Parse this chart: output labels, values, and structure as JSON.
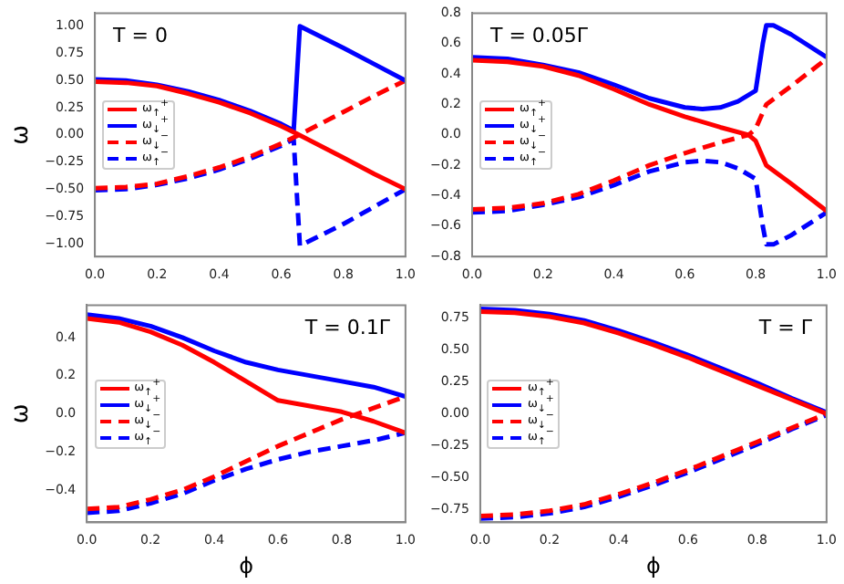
{
  "chart_data": [
    {
      "type": "line",
      "title": "T = 0",
      "ylabel": "ω",
      "legend": "center left",
      "grid": false,
      "marker": "none",
      "xlim": [
        0,
        1
      ],
      "ylim": [
        -1.12,
        1.12
      ],
      "xticks": [
        {
          "value": 0,
          "label": "0.0"
        },
        {
          "value": 0.2,
          "label": "0.2"
        },
        {
          "value": 0.4,
          "label": "0.4"
        },
        {
          "value": 0.6,
          "label": "0.6"
        },
        {
          "value": 0.8,
          "label": "0.8"
        },
        {
          "value": 1,
          "label": "1.0"
        }
      ],
      "yticks": [
        {
          "value": -1,
          "label": "−1.00"
        },
        {
          "value": -0.75,
          "label": "−0.75"
        },
        {
          "value": -0.5,
          "label": "−0.50"
        },
        {
          "value": -0.25,
          "label": "−0.25"
        },
        {
          "value": 0,
          "label": "0.00"
        },
        {
          "value": 0.25,
          "label": "0.25"
        },
        {
          "value": 0.5,
          "label": "0.50"
        },
        {
          "value": 0.75,
          "label": "0.75"
        },
        {
          "value": 1,
          "label": "1.00"
        }
      ],
      "series": [
        {
          "name": "ω$_{↑}$$^{+}$",
          "color": "#ff0000",
          "line_style": "solid",
          "x": [
            0,
            0.1,
            0.2,
            0.3,
            0.4,
            0.5,
            0.6,
            0.65,
            0.8,
            0.9,
            1
          ],
          "values": [
            0.49,
            0.48,
            0.45,
            0.38,
            0.3,
            0.2,
            0.08,
            0.01,
            -0.21,
            -0.36,
            -0.5
          ]
        },
        {
          "name": "ω$_{↓}$$^{+}$",
          "color": "#0000ff",
          "line_style": "solid",
          "x": [
            0,
            0.1,
            0.2,
            0.3,
            0.4,
            0.5,
            0.6,
            0.64,
            0.66,
            0.8,
            0.9,
            1
          ],
          "values": [
            0.51,
            0.5,
            0.46,
            0.4,
            0.32,
            0.22,
            0.1,
            0.04,
            1.0,
            0.8,
            0.65,
            0.5
          ]
        },
        {
          "name": "ω$_{↓}$$^{−}$",
          "color": "#ff0000",
          "line_style": "dashed",
          "x": [
            0,
            0.1,
            0.2,
            0.3,
            0.4,
            0.5,
            0.6,
            0.65,
            0.8,
            0.9,
            1
          ],
          "values": [
            -0.49,
            -0.48,
            -0.45,
            -0.38,
            -0.3,
            -0.2,
            -0.08,
            -0.01,
            0.21,
            0.36,
            0.5
          ]
        },
        {
          "name": "ω$_{↑}$$^{−}$",
          "color": "#0000ff",
          "line_style": "dashed",
          "x": [
            0,
            0.1,
            0.2,
            0.3,
            0.4,
            0.5,
            0.6,
            0.64,
            0.66,
            0.8,
            0.9,
            1
          ],
          "values": [
            -0.51,
            -0.5,
            -0.46,
            -0.4,
            -0.32,
            -0.22,
            -0.1,
            -0.04,
            -1.02,
            -0.82,
            -0.66,
            -0.5
          ]
        }
      ]
    },
    {
      "type": "line",
      "title": "T = 0.05Γ",
      "legend": "center left",
      "grid": false,
      "marker": "none",
      "xlim": [
        0,
        1
      ],
      "ylim": [
        -0.8,
        0.8
      ],
      "xticks": [
        {
          "value": 0,
          "label": "0.0"
        },
        {
          "value": 0.2,
          "label": "0.2"
        },
        {
          "value": 0.4,
          "label": "0.4"
        },
        {
          "value": 0.6,
          "label": "0.6"
        },
        {
          "value": 0.8,
          "label": "0.8"
        },
        {
          "value": 1,
          "label": "1.0"
        }
      ],
      "yticks": [
        {
          "value": -0.8,
          "label": "−0.8"
        },
        {
          "value": -0.6,
          "label": "−0.6"
        },
        {
          "value": -0.4,
          "label": "−0.4"
        },
        {
          "value": -0.2,
          "label": "−0.2"
        },
        {
          "value": 0,
          "label": "0.0"
        },
        {
          "value": 0.2,
          "label": "0.2"
        },
        {
          "value": 0.4,
          "label": "0.4"
        },
        {
          "value": 0.6,
          "label": "0.6"
        },
        {
          "value": 0.8,
          "label": "0.8"
        }
      ],
      "series": [
        {
          "name": "ω$_{↑}$$^{+}$",
          "color": "#ff0000",
          "line_style": "solid",
          "x": [
            0,
            0.1,
            0.2,
            0.3,
            0.4,
            0.5,
            0.6,
            0.7,
            0.78,
            0.8,
            0.83,
            0.9,
            1
          ],
          "values": [
            0.49,
            0.48,
            0.45,
            0.39,
            0.3,
            0.2,
            0.12,
            0.05,
            0.0,
            -0.04,
            -0.2,
            -0.32,
            -0.5
          ]
        },
        {
          "name": "ω$_{↓}$$^{+}$",
          "color": "#0000ff",
          "line_style": "solid",
          "x": [
            0,
            0.1,
            0.2,
            0.3,
            0.4,
            0.5,
            0.6,
            0.65,
            0.7,
            0.75,
            0.8,
            0.82,
            0.83,
            0.85,
            0.9,
            1
          ],
          "values": [
            0.51,
            0.5,
            0.46,
            0.41,
            0.33,
            0.24,
            0.18,
            0.17,
            0.18,
            0.22,
            0.29,
            0.6,
            0.72,
            0.72,
            0.66,
            0.51
          ]
        },
        {
          "name": "ω$_{↓}$$^{−}$",
          "color": "#ff0000",
          "line_style": "dashed",
          "x": [
            0,
            0.1,
            0.2,
            0.3,
            0.4,
            0.5,
            0.6,
            0.7,
            0.78,
            0.8,
            0.83,
            0.9,
            1
          ],
          "values": [
            -0.49,
            -0.48,
            -0.45,
            -0.39,
            -0.3,
            -0.2,
            -0.12,
            -0.05,
            0.0,
            0.04,
            0.2,
            0.32,
            0.5
          ]
        },
        {
          "name": "ω$_{↑}$$^{−}$",
          "color": "#0000ff",
          "line_style": "dashed",
          "x": [
            0,
            0.1,
            0.2,
            0.3,
            0.4,
            0.5,
            0.6,
            0.65,
            0.7,
            0.75,
            0.8,
            0.82,
            0.83,
            0.85,
            0.9,
            1
          ],
          "values": [
            -0.51,
            -0.5,
            -0.46,
            -0.41,
            -0.33,
            -0.24,
            -0.18,
            -0.17,
            -0.18,
            -0.22,
            -0.29,
            -0.6,
            -0.72,
            -0.72,
            -0.66,
            -0.51
          ]
        }
      ]
    },
    {
      "type": "line",
      "title": "T = 0.1Γ",
      "xlabel": "ϕ",
      "ylabel": "ω",
      "legend": "center left",
      "grid": false,
      "marker": "none",
      "xlim": [
        0,
        1
      ],
      "ylim": [
        -0.57,
        0.57
      ],
      "xticks": [
        {
          "value": 0,
          "label": "0.0"
        },
        {
          "value": 0.2,
          "label": "0.2"
        },
        {
          "value": 0.4,
          "label": "0.4"
        },
        {
          "value": 0.6,
          "label": "0.6"
        },
        {
          "value": 0.8,
          "label": "0.8"
        },
        {
          "value": 1,
          "label": "1.0"
        }
      ],
      "yticks": [
        {
          "value": -0.4,
          "label": "−0.4"
        },
        {
          "value": -0.2,
          "label": "−0.2"
        },
        {
          "value": 0,
          "label": "0.0"
        },
        {
          "value": 0.2,
          "label": "0.2"
        },
        {
          "value": 0.4,
          "label": "0.4"
        }
      ],
      "series": [
        {
          "name": "ω$_{↑}$$^{+}$",
          "color": "#ff0000",
          "line_style": "solid",
          "x": [
            0,
            0.1,
            0.2,
            0.3,
            0.4,
            0.5,
            0.6,
            0.7,
            0.8,
            0.9,
            1
          ],
          "values": [
            0.5,
            0.48,
            0.43,
            0.36,
            0.27,
            0.17,
            0.07,
            0.04,
            0.01,
            -0.04,
            -0.1
          ]
        },
        {
          "name": "ω$_{↓}$$^{+}$",
          "color": "#0000ff",
          "line_style": "solid",
          "x": [
            0,
            0.1,
            0.2,
            0.3,
            0.4,
            0.5,
            0.6,
            0.7,
            0.8,
            0.9,
            1
          ],
          "values": [
            0.52,
            0.5,
            0.46,
            0.4,
            0.33,
            0.27,
            0.23,
            0.2,
            0.17,
            0.14,
            0.09
          ]
        },
        {
          "name": "ω$_{↓}$$^{−}$",
          "color": "#ff0000",
          "line_style": "dashed",
          "x": [
            0,
            0.1,
            0.2,
            0.3,
            0.4,
            0.5,
            0.6,
            0.7,
            0.8,
            0.9,
            1
          ],
          "values": [
            -0.5,
            -0.49,
            -0.45,
            -0.4,
            -0.33,
            -0.25,
            -0.17,
            -0.1,
            -0.03,
            0.03,
            0.09
          ]
        },
        {
          "name": "ω$_{↑}$$^{−}$",
          "color": "#0000ff",
          "line_style": "dashed",
          "x": [
            0,
            0.1,
            0.2,
            0.3,
            0.4,
            0.5,
            0.6,
            0.7,
            0.8,
            0.9,
            1
          ],
          "values": [
            -0.52,
            -0.51,
            -0.47,
            -0.42,
            -0.35,
            -0.29,
            -0.24,
            -0.2,
            -0.17,
            -0.14,
            -0.1
          ]
        }
      ]
    },
    {
      "type": "line",
      "title": "T = Γ",
      "xlabel": "ϕ",
      "legend": "center left",
      "grid": false,
      "marker": "none",
      "xlim": [
        0,
        1
      ],
      "ylim": [
        -0.85,
        0.85
      ],
      "xticks": [
        {
          "value": 0,
          "label": "0.0"
        },
        {
          "value": 0.2,
          "label": "0.2"
        },
        {
          "value": 0.4,
          "label": "0.4"
        },
        {
          "value": 0.6,
          "label": "0.6"
        },
        {
          "value": 0.8,
          "label": "0.8"
        },
        {
          "value": 1,
          "label": "1.0"
        }
      ],
      "yticks": [
        {
          "value": -0.75,
          "label": "−0.75"
        },
        {
          "value": -0.5,
          "label": "−0.50"
        },
        {
          "value": -0.25,
          "label": "−0.25"
        },
        {
          "value": 0,
          "label": "0.00"
        },
        {
          "value": 0.25,
          "label": "0.25"
        },
        {
          "value": 0.5,
          "label": "0.50"
        },
        {
          "value": 0.75,
          "label": "0.75"
        }
      ],
      "series": [
        {
          "name": "ω$_{↑}$$^{+}$",
          "color": "#ff0000",
          "line_style": "solid",
          "x": [
            0,
            0.1,
            0.2,
            0.3,
            0.4,
            0.5,
            0.6,
            0.7,
            0.8,
            0.9,
            1
          ],
          "values": [
            0.8,
            0.79,
            0.76,
            0.71,
            0.63,
            0.54,
            0.44,
            0.33,
            0.22,
            0.11,
            0.0
          ]
        },
        {
          "name": "ω$_{↓}$$^{+}$",
          "color": "#0000ff",
          "line_style": "solid",
          "x": [
            0,
            0.1,
            0.2,
            0.3,
            0.4,
            0.5,
            0.6,
            0.7,
            0.8,
            0.9,
            1
          ],
          "values": [
            0.82,
            0.81,
            0.78,
            0.73,
            0.65,
            0.56,
            0.46,
            0.35,
            0.24,
            0.12,
            0.01
          ]
        },
        {
          "name": "ω$_{↓}$$^{−}$",
          "color": "#ff0000",
          "line_style": "dashed",
          "x": [
            0,
            0.1,
            0.2,
            0.3,
            0.4,
            0.5,
            0.6,
            0.7,
            0.8,
            0.9,
            1
          ],
          "values": [
            -0.8,
            -0.79,
            -0.76,
            -0.71,
            -0.63,
            -0.54,
            -0.44,
            -0.33,
            -0.22,
            -0.11,
            0.0
          ]
        },
        {
          "name": "ω$_{↑}$$^{−}$",
          "color": "#0000ff",
          "line_style": "dashed",
          "x": [
            0,
            0.1,
            0.2,
            0.3,
            0.4,
            0.5,
            0.6,
            0.7,
            0.8,
            0.9,
            1
          ],
          "values": [
            -0.82,
            -0.81,
            -0.78,
            -0.73,
            -0.65,
            -0.56,
            -0.46,
            -0.35,
            -0.24,
            -0.12,
            -0.01
          ]
        }
      ]
    }
  ]
}
